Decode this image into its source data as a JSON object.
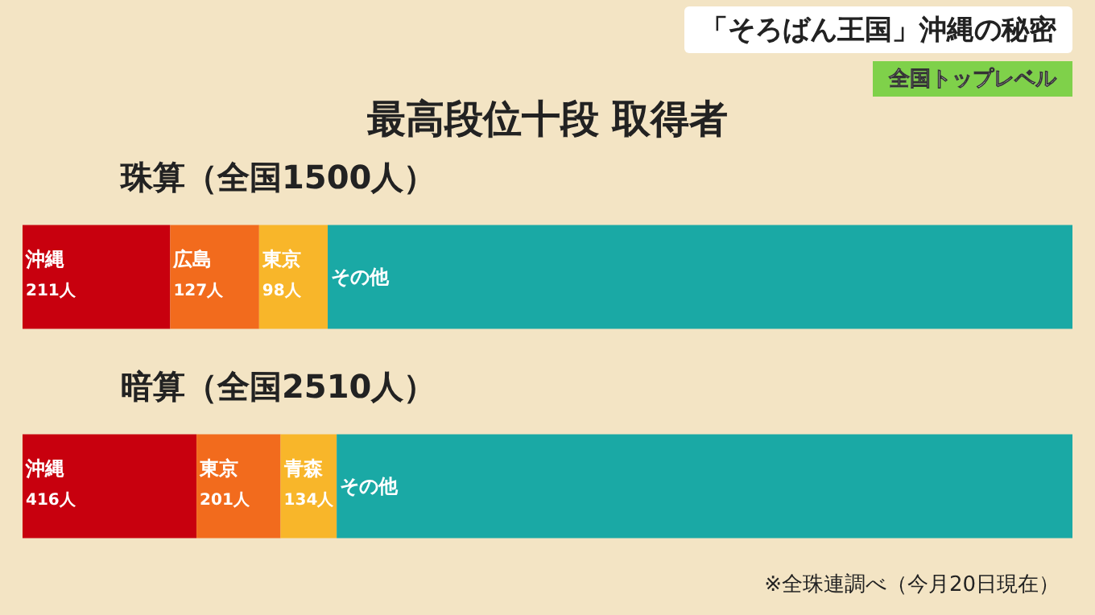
{
  "chart_data": [
    {
      "type": "bar",
      "title": "珠算（全国1500人）",
      "annotations": [
        "「そろばん王国」沖縄の秘密",
        "全国トップレベル",
        "最高段位十段 取得者"
      ],
      "orientation": "horizontal",
      "stacked": true,
      "tick_labels": false,
      "categories": [
        null
      ],
      "series": [
        {
          "name": "沖縄",
          "color": "#c8000e",
          "values": [
            211
          ],
          "value_labels": [
            "211人"
          ]
        },
        {
          "name": "広島",
          "color": "#f26b1d",
          "values": [
            127
          ],
          "value_labels": [
            "127人"
          ]
        },
        {
          "name": "東京",
          "color": "#f8b62a",
          "values": [
            98
          ],
          "value_labels": [
            "98人"
          ]
        },
        {
          "name": "その他",
          "color": "#1aa9a5",
          "values": [
            1064
          ],
          "value_labels": [
            null
          ]
        }
      ]
    },
    {
      "type": "bar",
      "title": "暗算（全国2510人）",
      "annotations": [
        "※全珠連調べ（今月20日現在）"
      ],
      "orientation": "horizontal",
      "stacked": true,
      "tick_labels": false,
      "categories": [
        null
      ],
      "series": [
        {
          "name": "沖縄",
          "color": "#c8000e",
          "values": [
            416
          ],
          "value_labels": [
            "416人"
          ]
        },
        {
          "name": "東京",
          "color": "#f26b1d",
          "values": [
            201
          ],
          "value_labels": [
            "201人"
          ]
        },
        {
          "name": "青森",
          "color": "#f8b62a",
          "values": [
            134
          ],
          "value_labels": [
            "134人"
          ]
        },
        {
          "name": "その他",
          "color": "#1aa9a5",
          "values": [
            1759
          ],
          "value_labels": [
            null
          ]
        }
      ]
    }
  ]
}
